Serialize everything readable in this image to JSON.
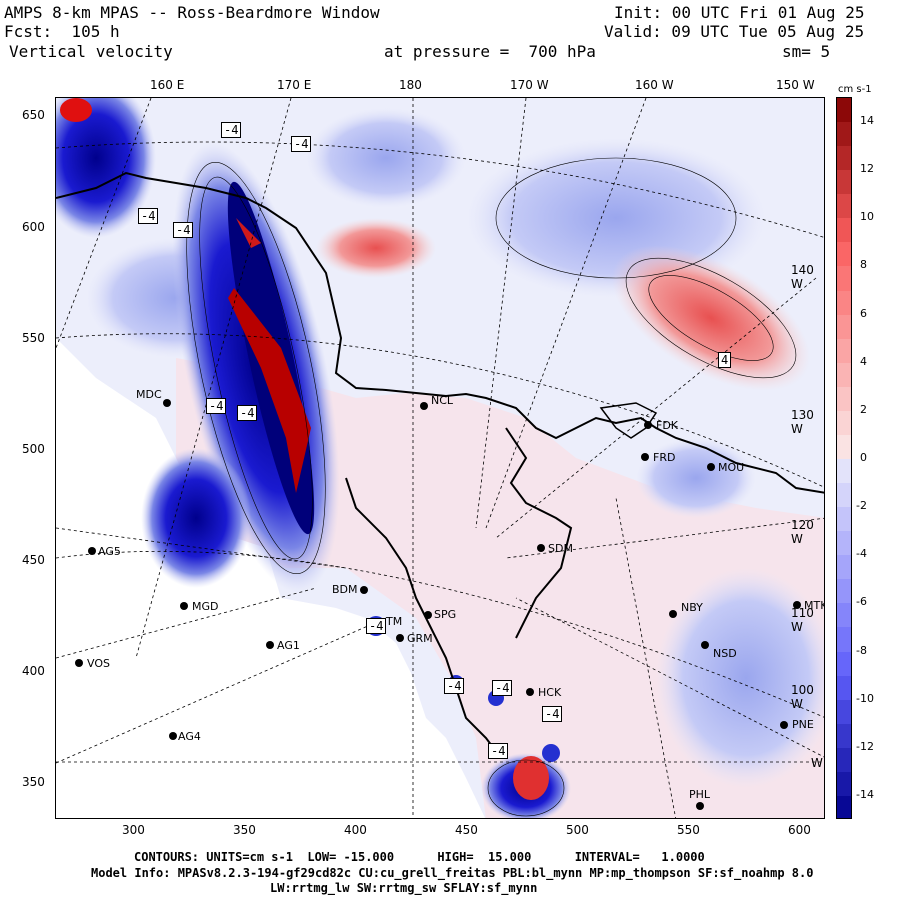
{
  "header": {
    "line1_left": "AMPS 8-km MPAS -- Ross-Beardmore Window",
    "line1_right": "Init: 00 UTC Fri 01 Aug 25",
    "line2_left": "Fcst:  105 h",
    "line2_right": "Valid: 09 UTC Tue 05 Aug 25",
    "line3_left": "Vertical velocity",
    "line3_mid": "at pressure =  700 hPa",
    "line3_right": "sm= 5"
  },
  "top_axis_labels": [
    "160 E",
    "170 E",
    "180",
    "170 W",
    "160 W",
    "150 W"
  ],
  "left_axis_labels": [
    "650",
    "600",
    "550",
    "500",
    "450",
    "400",
    "350"
  ],
  "bottom_axis_labels": [
    "300",
    "350",
    "400",
    "450",
    "500",
    "550",
    "600"
  ],
  "right_lon_labels": [
    "140 W",
    "130 W",
    "120 W",
    "110 W",
    "100 W",
    "W"
  ],
  "colorbar": {
    "unit": "cm s-1",
    "labels": [
      "14",
      "12",
      "10",
      "8",
      "6",
      "4",
      "2",
      "0",
      "-2",
      "-4",
      "-6",
      "-8",
      "-10",
      "-12",
      "-14"
    ],
    "range": [
      -15,
      15
    ],
    "positive_color": "#d40000",
    "negative_color": "#0000c8"
  },
  "stations": [
    {
      "name": "MDC"
    },
    {
      "name": "NCL"
    },
    {
      "name": "FDK"
    },
    {
      "name": "FRD"
    },
    {
      "name": "MOU"
    },
    {
      "name": "AG5"
    },
    {
      "name": "SDM"
    },
    {
      "name": "BDM"
    },
    {
      "name": "MGD"
    },
    {
      "name": "NBY"
    },
    {
      "name": "MTK"
    },
    {
      "name": "SPG"
    },
    {
      "name": "TM"
    },
    {
      "name": "GRM"
    },
    {
      "name": "AG1"
    },
    {
      "name": "NSD"
    },
    {
      "name": "VOS"
    },
    {
      "name": "HCK"
    },
    {
      "name": "PNE"
    },
    {
      "name": "AG4"
    },
    {
      "name": "PHL"
    }
  ],
  "contour_labels": [
    "-4",
    "-4",
    "-4",
    "-4",
    "-4",
    "-4",
    "-4",
    "-4",
    "-4",
    "-4",
    "-4",
    "4"
  ],
  "footer": {
    "contours": "CONTOURS: UNITS=cm s-1  LOW= -15.000      HIGH=  15.000      INTERVAL=   1.0000",
    "model_info": "Model Info: MPASv8.2.3-194-gf29cd82c CU:cu_grell_freitas PBL:bl_mynn MP:mp_thompson SF:sf_noahmp 8.0",
    "model_info2": "LW:rrtmg_lw SW:rrtmg_sw SFLAY:sf_mynn"
  }
}
